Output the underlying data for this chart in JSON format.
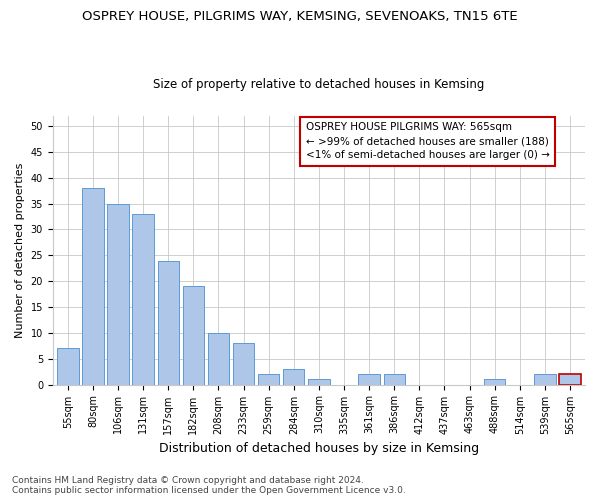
{
  "title": "OSPREY HOUSE, PILGRIMS WAY, KEMSING, SEVENOAKS, TN15 6TE",
  "subtitle": "Size of property relative to detached houses in Kemsing",
  "xlabel": "Distribution of detached houses by size in Kemsing",
  "ylabel": "Number of detached properties",
  "categories": [
    "55sqm",
    "80sqm",
    "106sqm",
    "131sqm",
    "157sqm",
    "182sqm",
    "208sqm",
    "233sqm",
    "259sqm",
    "284sqm",
    "310sqm",
    "335sqm",
    "361sqm",
    "386sqm",
    "412sqm",
    "437sqm",
    "463sqm",
    "488sqm",
    "514sqm",
    "539sqm",
    "565sqm"
  ],
  "values": [
    7,
    38,
    35,
    33,
    24,
    19,
    10,
    8,
    2,
    3,
    1,
    0,
    2,
    2,
    0,
    0,
    0,
    1,
    0,
    2,
    2
  ],
  "highlight_index": 20,
  "bar_color": "#aec6e8",
  "bar_edge_color": "#5b9bd5",
  "highlight_bar_color": "#aec6e8",
  "highlight_bar_edge_color": "#c00000",
  "annotation_box_edge_color": "#c00000",
  "annotation_text": "OSPREY HOUSE PILGRIMS WAY: 565sqm\n← >99% of detached houses are smaller (188)\n<1% of semi-detached houses are larger (0) →",
  "ylim": [
    0,
    52
  ],
  "yticks": [
    0,
    5,
    10,
    15,
    20,
    25,
    30,
    35,
    40,
    45,
    50
  ],
  "footer": "Contains HM Land Registry data © Crown copyright and database right 2024.\nContains public sector information licensed under the Open Government Licence v3.0.",
  "background_color": "#ffffff",
  "grid_color": "#c8c8c8",
  "title_fontsize": 9.5,
  "subtitle_fontsize": 8.5,
  "xlabel_fontsize": 9,
  "ylabel_fontsize": 8,
  "tick_fontsize": 7,
  "annotation_fontsize": 7.5,
  "footer_fontsize": 6.5
}
